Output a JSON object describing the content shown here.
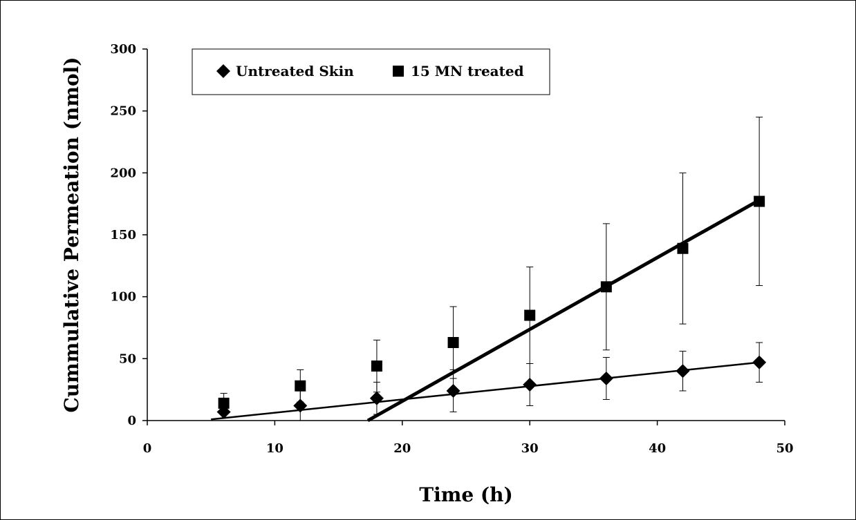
{
  "chart_data": {
    "type": "scatter",
    "title": "",
    "xlabel": "Time (h)",
    "ylabel": "Cummulative Permeation (nmol)",
    "xlim": [
      0,
      50
    ],
    "ylim": [
      0,
      300
    ],
    "x_ticks": [
      "0",
      "10",
      "20",
      "30",
      "40",
      "50"
    ],
    "y_ticks": [
      "0",
      "50",
      "100",
      "150",
      "200",
      "250",
      "300"
    ],
    "grid": false,
    "legend_position": "top-left",
    "series": [
      {
        "name": "Untreated Skin",
        "marker": "diamond",
        "color": "#000000",
        "x": [
          6,
          12,
          18,
          24,
          30,
          36,
          42,
          48
        ],
        "y": [
          7,
          12,
          18,
          24,
          29,
          34,
          40,
          47
        ],
        "error": [
          0,
          13,
          13,
          17,
          17,
          17,
          16,
          16
        ],
        "trendline": {
          "x": [
            5,
            48
          ],
          "y": [
            1,
            47
          ]
        }
      },
      {
        "name": "15 MN treated",
        "marker": "square",
        "color": "#000000",
        "x": [
          6,
          12,
          18,
          24,
          30,
          36,
          42,
          48
        ],
        "y": [
          14,
          28,
          44,
          63,
          85,
          108,
          139,
          177
        ],
        "error": [
          8,
          13,
          21,
          29,
          39,
          51,
          61,
          68
        ],
        "trendline": {
          "x": [
            17.3,
            48
          ],
          "y": [
            0,
            178
          ]
        }
      }
    ]
  }
}
